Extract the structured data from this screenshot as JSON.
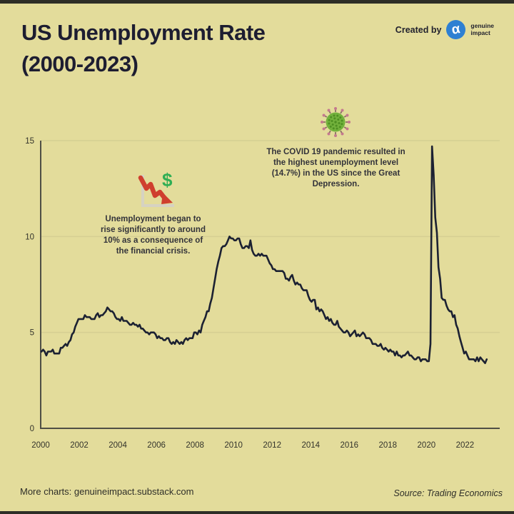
{
  "header": {
    "title": "US Unemployment Rate\n(2000-2023)",
    "created_by": "Created by",
    "brand": {
      "logo_glyph": "α",
      "name": "genuine\nimpact"
    }
  },
  "annotations": {
    "crisis": {
      "icon": "falling-chart-dollar-icon",
      "text": "Unemployment began to\nrise significantly to around\n10% as a consequence of\nthe financial crisis."
    },
    "covid": {
      "icon": "virus-icon",
      "text": "The COVID 19 pandemic resulted in\nthe highest unemployment level\n(14.7%) in the US since the Great\nDepression."
    }
  },
  "footer": {
    "more_charts": "More charts: genuineimpact.substack.com",
    "source": "Source: Trading Economics"
  },
  "colors": {
    "background": "#e3dc9b",
    "edge_bar": "#2e2e27",
    "title_text": "#1d1d31",
    "line": "#1c2132",
    "axis": "#4f4f45",
    "axis_text": "#33332b",
    "grid": "#d5cf92",
    "annotation_text": "#33333a",
    "brand_blue": "#2e80d2",
    "icon_red": "#cf3f2e",
    "icon_dollar_green": "#2fae54",
    "icon_axis_gray": "#d6d2c2",
    "virus_body_green": "#72b13c",
    "virus_dot_green": "#4e8f22",
    "virus_spike": "#8a7065",
    "virus_spike_tip": "#c4798e",
    "footer_text": "#2e2e28"
  },
  "chart_data": {
    "type": "line",
    "title": "US Unemployment Rate (2000-2023)",
    "xlabel": "",
    "ylabel": "",
    "unit": "%",
    "ylim": [
      0,
      15
    ],
    "yticks": [
      0,
      5,
      10,
      15
    ],
    "xticks": [
      2000,
      2002,
      2004,
      2006,
      2008,
      2010,
      2012,
      2014,
      2016,
      2018,
      2020,
      2022
    ],
    "x_range": [
      2000,
      2023.8
    ],
    "grid": "horizontal-only",
    "legend": "none",
    "start_year": 2000,
    "points_per_year": 12,
    "peak_annotated_value": 14.7,
    "series": [
      {
        "name": "US unemployment rate (%)",
        "monthly_values": [
          4.0,
          4.1,
          4.0,
          3.8,
          4.0,
          4.0,
          4.0,
          4.1,
          3.9,
          3.9,
          3.9,
          3.9,
          4.2,
          4.2,
          4.3,
          4.4,
          4.3,
          4.5,
          4.6,
          4.9,
          5.0,
          5.3,
          5.5,
          5.7,
          5.7,
          5.7,
          5.7,
          5.9,
          5.8,
          5.8,
          5.8,
          5.7,
          5.7,
          5.7,
          5.9,
          6.0,
          5.8,
          5.9,
          5.9,
          6.0,
          6.1,
          6.3,
          6.2,
          6.1,
          6.1,
          6.0,
          5.8,
          5.7,
          5.7,
          5.6,
          5.8,
          5.6,
          5.6,
          5.6,
          5.5,
          5.4,
          5.4,
          5.5,
          5.4,
          5.4,
          5.3,
          5.4,
          5.2,
          5.2,
          5.1,
          5.0,
          5.0,
          4.9,
          5.0,
          5.0,
          5.0,
          4.9,
          4.7,
          4.8,
          4.7,
          4.7,
          4.6,
          4.6,
          4.7,
          4.7,
          4.5,
          4.4,
          4.5,
          4.4,
          4.6,
          4.5,
          4.4,
          4.5,
          4.4,
          4.6,
          4.7,
          4.6,
          4.7,
          4.7,
          4.7,
          5.0,
          5.0,
          4.9,
          5.1,
          5.0,
          5.4,
          5.6,
          5.8,
          6.1,
          6.1,
          6.5,
          6.8,
          7.3,
          7.8,
          8.3,
          8.7,
          9.0,
          9.4,
          9.5,
          9.5,
          9.6,
          9.8,
          10.0,
          9.9,
          9.9,
          9.8,
          9.8,
          9.9,
          9.9,
          9.6,
          9.4,
          9.4,
          9.5,
          9.5,
          9.4,
          9.8,
          9.3,
          9.1,
          9.0,
          9.0,
          9.1,
          9.0,
          9.1,
          9.0,
          9.0,
          9.0,
          8.8,
          8.6,
          8.5,
          8.3,
          8.3,
          8.2,
          8.2,
          8.2,
          8.2,
          8.2,
          8.1,
          7.8,
          7.8,
          7.7,
          7.9,
          8.0,
          7.7,
          7.5,
          7.6,
          7.5,
          7.5,
          7.3,
          7.2,
          7.2,
          7.2,
          6.9,
          6.7,
          6.6,
          6.7,
          6.7,
          6.2,
          6.3,
          6.1,
          6.2,
          6.1,
          5.9,
          5.7,
          5.8,
          5.6,
          5.7,
          5.5,
          5.4,
          5.4,
          5.6,
          5.3,
          5.2,
          5.1,
          5.0,
          5.0,
          5.1,
          5.0,
          4.8,
          4.9,
          5.0,
          5.1,
          4.8,
          4.9,
          4.8,
          4.9,
          5.0,
          4.9,
          4.7,
          4.7,
          4.7,
          4.6,
          4.4,
          4.4,
          4.4,
          4.3,
          4.3,
          4.4,
          4.2,
          4.1,
          4.2,
          4.1,
          4.0,
          4.1,
          4.0,
          4.0,
          3.8,
          4.0,
          3.8,
          3.8,
          3.7,
          3.8,
          3.8,
          3.9,
          4.0,
          3.8,
          3.8,
          3.7,
          3.6,
          3.6,
          3.7,
          3.7,
          3.5,
          3.6,
          3.6,
          3.6,
          3.5,
          3.5,
          4.4,
          14.7,
          13.2,
          11.0,
          10.2,
          8.4,
          7.8,
          6.8,
          6.7,
          6.7,
          6.4,
          6.2,
          6.1,
          6.1,
          5.8,
          5.9,
          5.4,
          5.2,
          4.8,
          4.5,
          4.2,
          3.9,
          4.0,
          3.8,
          3.6,
          3.6,
          3.6,
          3.6,
          3.5,
          3.7,
          3.5,
          3.7,
          3.6,
          3.5,
          3.4,
          3.6
        ]
      }
    ]
  }
}
